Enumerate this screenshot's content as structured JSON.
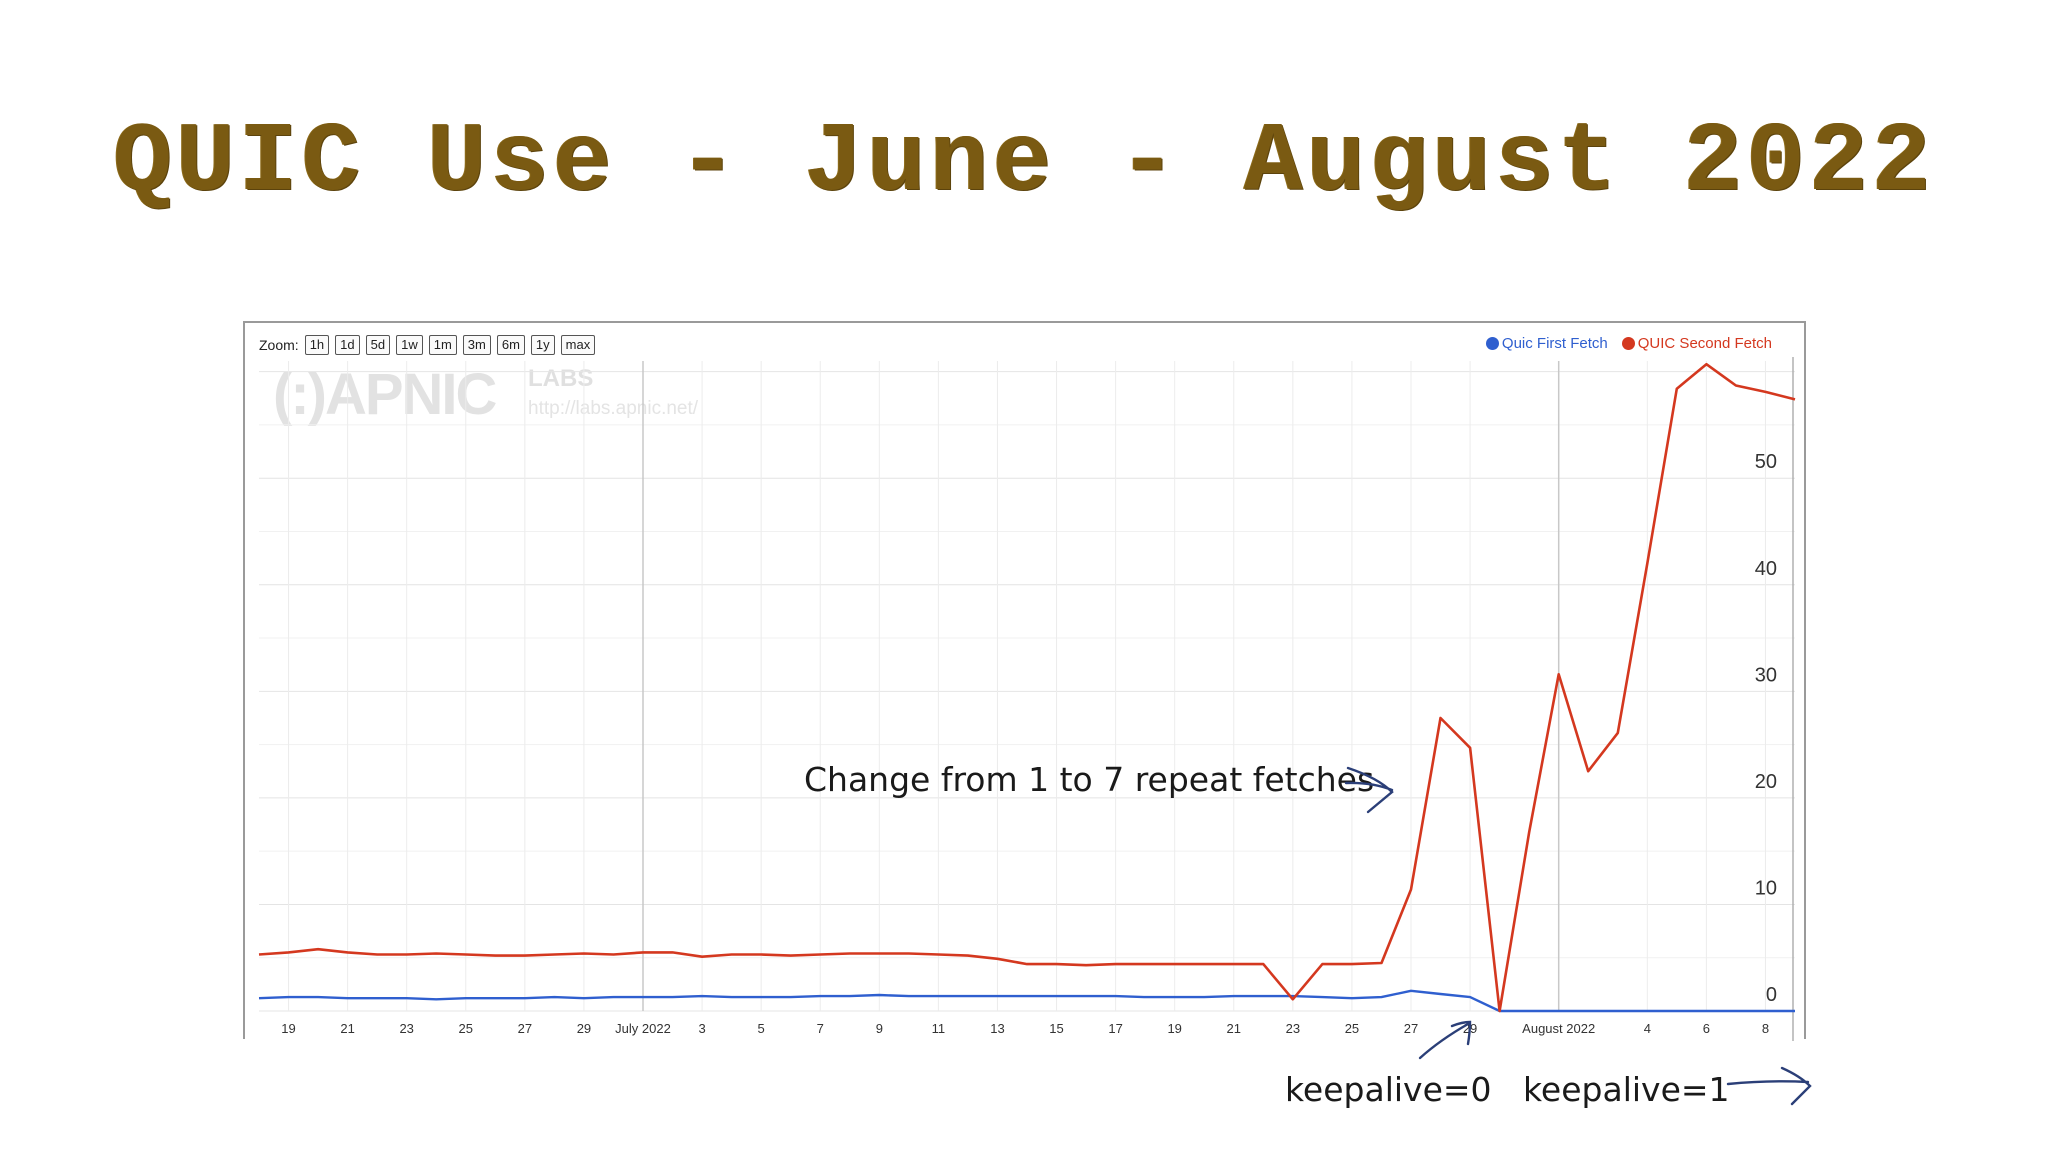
{
  "slide": {
    "title": "QUIC Use - June - August 2022"
  },
  "toolbar": {
    "zoom_label": "Zoom:",
    "zoom_options": [
      "1h",
      "1d",
      "5d",
      "1w",
      "1m",
      "3m",
      "6m",
      "1y",
      "max"
    ]
  },
  "watermark": {
    "brand": "(:)APNIC",
    "labs": "LABS",
    "url": "http://labs.apnic.net/"
  },
  "annotations": {
    "change": "Change from 1 to 7 repeat fetches",
    "keepalive0": "keepalive=0",
    "keepalive1": "keepalive=1"
  },
  "chart_data": {
    "type": "line",
    "x_tick_labels": [
      "19",
      "21",
      "23",
      "25",
      "27",
      "29",
      "July 2022",
      "3",
      "5",
      "7",
      "9",
      "11",
      "13",
      "15",
      "17",
      "19",
      "21",
      "23",
      "25",
      "27",
      "29",
      "August 2022",
      "4",
      "6",
      "8"
    ],
    "x_tick_dates": [
      "2022-06-19",
      "2022-06-21",
      "2022-06-23",
      "2022-06-25",
      "2022-06-27",
      "2022-06-29",
      "2022-07-01",
      "2022-07-03",
      "2022-07-05",
      "2022-07-07",
      "2022-07-09",
      "2022-07-11",
      "2022-07-13",
      "2022-07-15",
      "2022-07-17",
      "2022-07-19",
      "2022-07-21",
      "2022-07-23",
      "2022-07-25",
      "2022-07-27",
      "2022-07-29",
      "2022-08-01",
      "2022-08-04",
      "2022-08-06",
      "2022-08-08"
    ],
    "y_ticks": [
      0,
      10,
      20,
      30,
      40,
      50
    ],
    "ylim": [
      0,
      61
    ],
    "x_range": [
      "2022-06-18",
      "2022-08-09"
    ],
    "grid": true,
    "legend_position": "top-right",
    "series": [
      {
        "name": "Quic First Fetch",
        "color": "#2f5fcf",
        "points": [
          [
            "2022-06-18",
            1.2
          ],
          [
            "2022-06-19",
            1.3
          ],
          [
            "2022-06-20",
            1.3
          ],
          [
            "2022-06-21",
            1.2
          ],
          [
            "2022-06-22",
            1.2
          ],
          [
            "2022-06-23",
            1.2
          ],
          [
            "2022-06-24",
            1.1
          ],
          [
            "2022-06-25",
            1.2
          ],
          [
            "2022-06-26",
            1.2
          ],
          [
            "2022-06-27",
            1.2
          ],
          [
            "2022-06-28",
            1.3
          ],
          [
            "2022-06-29",
            1.2
          ],
          [
            "2022-06-30",
            1.3
          ],
          [
            "2022-07-01",
            1.3
          ],
          [
            "2022-07-02",
            1.3
          ],
          [
            "2022-07-03",
            1.4
          ],
          [
            "2022-07-04",
            1.3
          ],
          [
            "2022-07-05",
            1.3
          ],
          [
            "2022-07-06",
            1.3
          ],
          [
            "2022-07-07",
            1.4
          ],
          [
            "2022-07-08",
            1.4
          ],
          [
            "2022-07-09",
            1.5
          ],
          [
            "2022-07-10",
            1.4
          ],
          [
            "2022-07-11",
            1.4
          ],
          [
            "2022-07-12",
            1.4
          ],
          [
            "2022-07-13",
            1.4
          ],
          [
            "2022-07-14",
            1.4
          ],
          [
            "2022-07-15",
            1.4
          ],
          [
            "2022-07-16",
            1.4
          ],
          [
            "2022-07-17",
            1.4
          ],
          [
            "2022-07-18",
            1.3
          ],
          [
            "2022-07-19",
            1.3
          ],
          [
            "2022-07-20",
            1.3
          ],
          [
            "2022-07-21",
            1.4
          ],
          [
            "2022-07-22",
            1.4
          ],
          [
            "2022-07-23",
            1.4
          ],
          [
            "2022-07-24",
            1.3
          ],
          [
            "2022-07-25",
            1.2
          ],
          [
            "2022-07-26",
            1.3
          ],
          [
            "2022-07-27",
            1.9
          ],
          [
            "2022-07-28",
            1.6
          ],
          [
            "2022-07-29",
            1.3
          ],
          [
            "2022-07-30",
            0.0
          ],
          [
            "2022-07-31",
            0.0
          ],
          [
            "2022-08-01",
            0.0
          ],
          [
            "2022-08-02",
            0.0
          ],
          [
            "2022-08-03",
            0.0
          ],
          [
            "2022-08-04",
            0.0
          ],
          [
            "2022-08-05",
            0.0
          ],
          [
            "2022-08-06",
            0.0
          ],
          [
            "2022-08-07",
            0.0
          ],
          [
            "2022-08-08",
            0.0
          ],
          [
            "2022-08-09",
            0.0
          ]
        ]
      },
      {
        "name": "QUIC Second Fetch",
        "color": "#d4381f",
        "points": [
          [
            "2022-06-18",
            5.3
          ],
          [
            "2022-06-19",
            5.5
          ],
          [
            "2022-06-20",
            5.8
          ],
          [
            "2022-06-21",
            5.5
          ],
          [
            "2022-06-22",
            5.3
          ],
          [
            "2022-06-23",
            5.3
          ],
          [
            "2022-06-24",
            5.4
          ],
          [
            "2022-06-25",
            5.3
          ],
          [
            "2022-06-26",
            5.2
          ],
          [
            "2022-06-27",
            5.2
          ],
          [
            "2022-06-28",
            5.3
          ],
          [
            "2022-06-29",
            5.4
          ],
          [
            "2022-06-30",
            5.3
          ],
          [
            "2022-07-01",
            5.5
          ],
          [
            "2022-07-02",
            5.5
          ],
          [
            "2022-07-03",
            5.1
          ],
          [
            "2022-07-04",
            5.3
          ],
          [
            "2022-07-05",
            5.3
          ],
          [
            "2022-07-06",
            5.2
          ],
          [
            "2022-07-07",
            5.3
          ],
          [
            "2022-07-08",
            5.4
          ],
          [
            "2022-07-09",
            5.4
          ],
          [
            "2022-07-10",
            5.4
          ],
          [
            "2022-07-11",
            5.3
          ],
          [
            "2022-07-12",
            5.2
          ],
          [
            "2022-07-13",
            4.9
          ],
          [
            "2022-07-14",
            4.4
          ],
          [
            "2022-07-15",
            4.4
          ],
          [
            "2022-07-16",
            4.3
          ],
          [
            "2022-07-17",
            4.4
          ],
          [
            "2022-07-18",
            4.4
          ],
          [
            "2022-07-19",
            4.4
          ],
          [
            "2022-07-20",
            4.4
          ],
          [
            "2022-07-21",
            4.4
          ],
          [
            "2022-07-22",
            4.4
          ],
          [
            "2022-07-23",
            1.1
          ],
          [
            "2022-07-24",
            4.4
          ],
          [
            "2022-07-25",
            4.4
          ],
          [
            "2022-07-26",
            4.5
          ],
          [
            "2022-07-27",
            11.4
          ],
          [
            "2022-07-28",
            27.5
          ],
          [
            "2022-07-29",
            24.7
          ],
          [
            "2022-07-30",
            0.0
          ],
          [
            "2022-07-31",
            16.8
          ],
          [
            "2022-08-01",
            31.6
          ],
          [
            "2022-08-02",
            22.5
          ],
          [
            "2022-08-03",
            26.1
          ],
          [
            "2022-08-04",
            42.0
          ],
          [
            "2022-08-05",
            58.4
          ],
          [
            "2022-08-06",
            60.7
          ],
          [
            "2022-08-07",
            58.7
          ],
          [
            "2022-08-08",
            58.1
          ],
          [
            "2022-08-09",
            57.4
          ]
        ]
      }
    ]
  }
}
